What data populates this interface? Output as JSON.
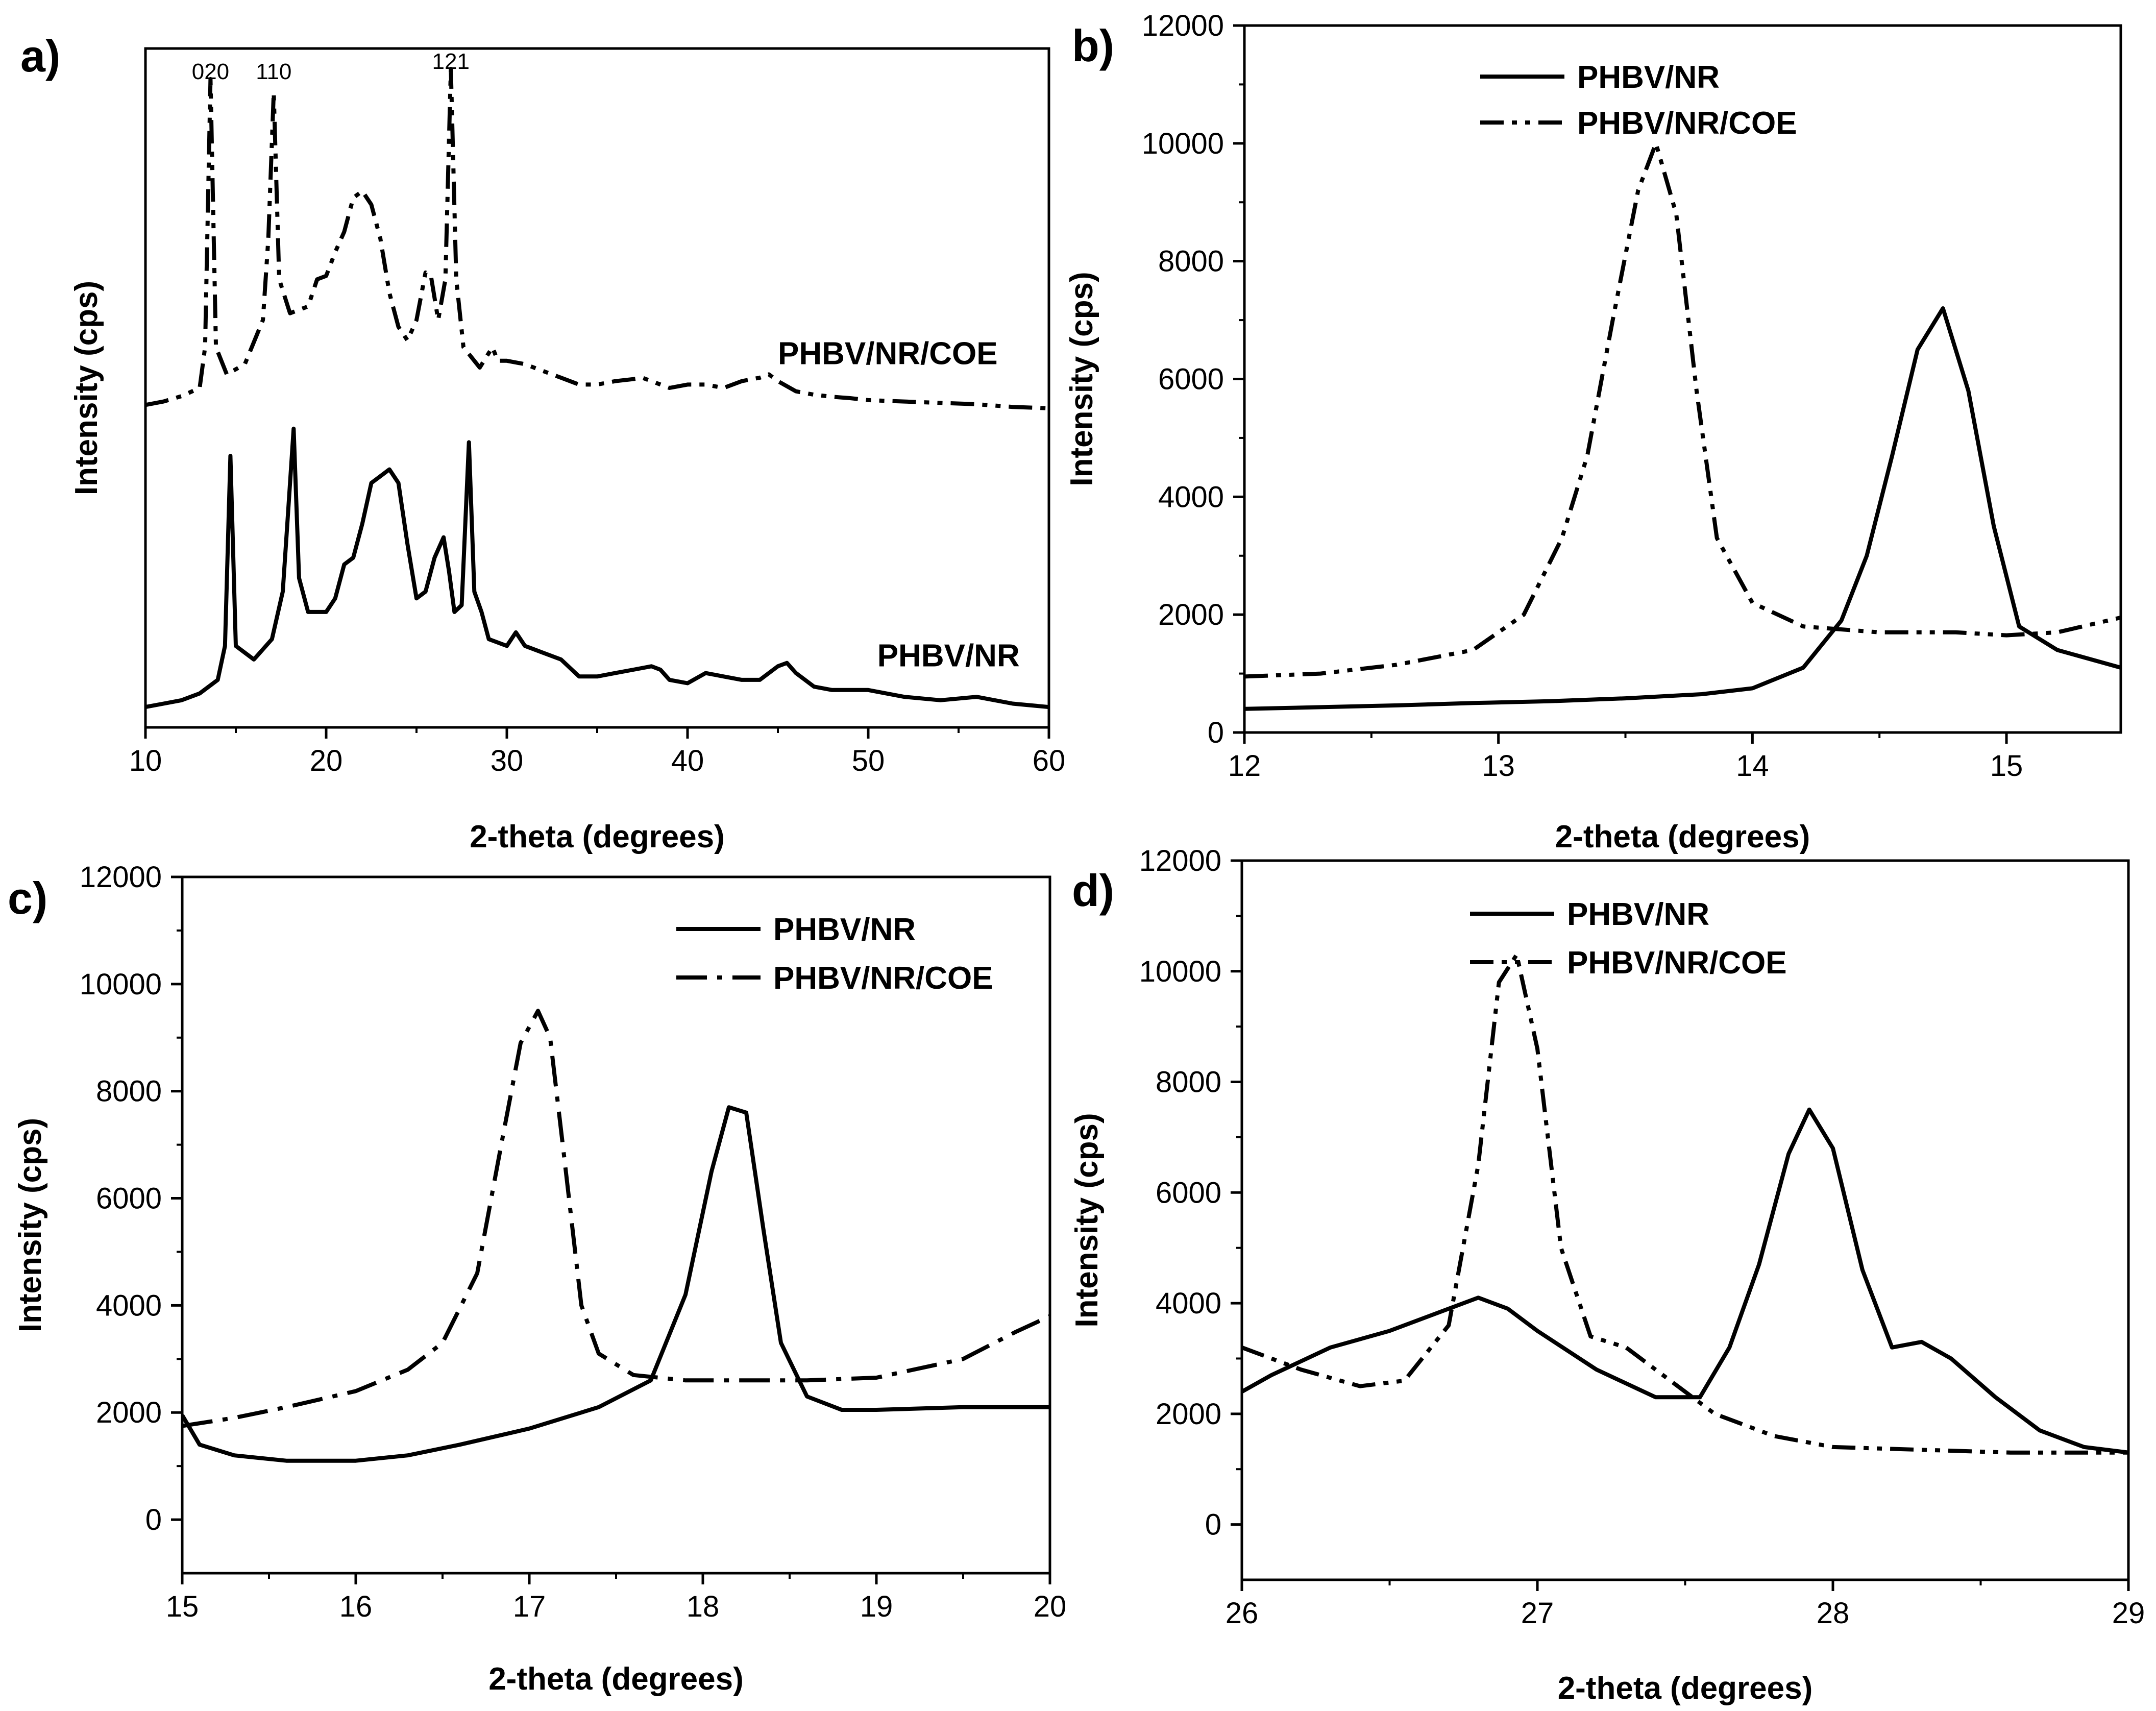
{
  "colors": {
    "line": "#000000",
    "background": "#ffffff"
  },
  "chart_data": [
    {
      "id": "a",
      "type": "line",
      "panel_label": "a)",
      "xlabel": "2-theta (degrees)",
      "ylabel": "Intensity (cps)",
      "xlim": [
        10,
        60
      ],
      "ylim": [
        0,
        1
      ],
      "xticks": [
        10,
        20,
        30,
        40,
        50,
        60
      ],
      "yticks": [],
      "legend": null,
      "peak_labels": [
        {
          "text": "020",
          "x": 13.6,
          "y": 0.955
        },
        {
          "text": "110",
          "x": 17.1,
          "y": 0.955
        },
        {
          "text": "121",
          "x": 26.9,
          "y": 0.97
        }
      ],
      "series": [
        {
          "name": "PHBV/NR/COE",
          "style": "dashdotdot",
          "end_label": {
            "text": "PHBV/NR/COE",
            "x": 45,
            "y": 0.535
          },
          "x": [
            10,
            11,
            12,
            13,
            13.3,
            13.6,
            13.9,
            14.5,
            15.5,
            16.5,
            16.8,
            17.1,
            17.4,
            18,
            19,
            19.5,
            20,
            20.5,
            21,
            21.5,
            22,
            22.5,
            23,
            23.5,
            24,
            24.5,
            25,
            25.5,
            25.8,
            26.2,
            26.6,
            26.9,
            27.2,
            27.6,
            28.5,
            29.2,
            29.5,
            30,
            31,
            32,
            33,
            34,
            35,
            36,
            37,
            37.5,
            38,
            39,
            40,
            41,
            42,
            43,
            44,
            44.5,
            45,
            46,
            47,
            48,
            49,
            50,
            52,
            54,
            56,
            58,
            60
          ],
          "y": [
            0.475,
            0.48,
            0.488,
            0.5,
            0.56,
            0.955,
            0.56,
            0.52,
            0.535,
            0.6,
            0.72,
            0.935,
            0.66,
            0.61,
            0.62,
            0.66,
            0.665,
            0.7,
            0.73,
            0.78,
            0.79,
            0.77,
            0.72,
            0.64,
            0.59,
            0.57,
            0.6,
            0.67,
            0.665,
            0.6,
            0.66,
            0.97,
            0.66,
            0.56,
            0.53,
            0.56,
            0.54,
            0.54,
            0.535,
            0.525,
            0.515,
            0.505,
            0.505,
            0.51,
            0.513,
            0.515,
            0.51,
            0.5,
            0.505,
            0.505,
            0.5,
            0.51,
            0.515,
            0.52,
            0.51,
            0.495,
            0.49,
            0.487,
            0.485,
            0.482,
            0.48,
            0.478,
            0.476,
            0.472,
            0.47
          ]
        },
        {
          "name": "PHBV/NR",
          "style": "solid",
          "end_label": {
            "text": "PHBV/NR",
            "x": 50.5,
            "y": 0.09
          },
          "x": [
            10,
            11,
            12,
            13,
            14,
            14.4,
            14.7,
            15,
            16,
            17,
            17.6,
            17.9,
            18.2,
            18.5,
            19,
            20,
            20.5,
            21,
            21.5,
            22,
            22.5,
            23,
            23.5,
            24,
            24.5,
            25,
            25.5,
            26,
            26.5,
            26.8,
            27.1,
            27.5,
            27.9,
            28.2,
            28.6,
            29,
            30,
            30.5,
            31,
            32,
            33,
            34,
            35,
            36,
            37,
            38,
            38.5,
            39,
            40,
            41,
            42,
            43,
            44,
            45,
            45.5,
            46,
            47,
            48,
            50,
            52,
            54,
            56,
            58,
            60
          ],
          "y": [
            0.03,
            0.035,
            0.04,
            0.05,
            0.07,
            0.12,
            0.4,
            0.12,
            0.1,
            0.13,
            0.2,
            0.32,
            0.44,
            0.22,
            0.17,
            0.17,
            0.19,
            0.24,
            0.25,
            0.3,
            0.36,
            0.37,
            0.38,
            0.36,
            0.27,
            0.19,
            0.2,
            0.25,
            0.28,
            0.23,
            0.17,
            0.18,
            0.42,
            0.2,
            0.17,
            0.13,
            0.12,
            0.14,
            0.12,
            0.11,
            0.1,
            0.075,
            0.075,
            0.08,
            0.085,
            0.09,
            0.085,
            0.07,
            0.065,
            0.08,
            0.075,
            0.07,
            0.07,
            0.09,
            0.095,
            0.08,
            0.06,
            0.055,
            0.055,
            0.045,
            0.04,
            0.045,
            0.035,
            0.03
          ]
        }
      ]
    },
    {
      "id": "b",
      "type": "line",
      "panel_label": "b)",
      "xlabel": "2-theta (degrees)",
      "ylabel": "Intensity (cps)",
      "xlim": [
        12,
        15.45
      ],
      "ylim": [
        0,
        12000
      ],
      "xticks": [
        12,
        13,
        14,
        15
      ],
      "yticks": [
        0,
        2000,
        4000,
        6000,
        8000,
        10000,
        12000
      ],
      "legend": [
        "PHBV/NR",
        "PHBV/NR/COE"
      ],
      "series": [
        {
          "name": "PHBV/NR",
          "style": "solid",
          "x": [
            12,
            12.3,
            12.6,
            12.9,
            13.2,
            13.5,
            13.8,
            14,
            14.2,
            14.35,
            14.45,
            14.55,
            14.65,
            14.75,
            14.85,
            14.95,
            15.05,
            15.2,
            15.45
          ],
          "y": [
            400,
            430,
            460,
            500,
            530,
            580,
            650,
            750,
            1100,
            1900,
            3000,
            4700,
            6500,
            7200,
            5800,
            3500,
            1800,
            1400,
            1100
          ]
        },
        {
          "name": "PHBV/NR/COE",
          "style": "dashdotdot",
          "x": [
            12,
            12.3,
            12.6,
            12.9,
            13.1,
            13.25,
            13.35,
            13.45,
            13.55,
            13.62,
            13.7,
            13.78,
            13.86,
            14,
            14.2,
            14.5,
            14.8,
            15,
            15.2,
            15.45
          ],
          "y": [
            950,
            1000,
            1150,
            1400,
            2000,
            3300,
            4700,
            7000,
            9200,
            10000,
            8800,
            5800,
            3300,
            2200,
            1800,
            1700,
            1700,
            1650,
            1700,
            1950
          ]
        }
      ]
    },
    {
      "id": "c",
      "type": "line",
      "panel_label": "c)",
      "xlabel": "2-theta (degrees)",
      "ylabel": "Intensity (cps)",
      "xlim": [
        15,
        20
      ],
      "ylim": [
        -1000,
        12000
      ],
      "xticks": [
        15,
        16,
        17,
        18,
        19,
        20
      ],
      "yticks": [
        0,
        2000,
        4000,
        6000,
        8000,
        10000,
        12000
      ],
      "legend": [
        "PHBV/NR",
        "PHBV/NR/COE"
      ],
      "series": [
        {
          "name": "PHBV/NR",
          "style": "solid",
          "x": [
            15,
            15.1,
            15.3,
            15.6,
            16,
            16.3,
            16.6,
            17,
            17.4,
            17.7,
            17.9,
            18.05,
            18.15,
            18.25,
            18.35,
            18.45,
            18.6,
            18.8,
            19,
            19.5,
            20
          ],
          "y": [
            1950,
            1400,
            1200,
            1100,
            1100,
            1200,
            1400,
            1700,
            2100,
            2600,
            4200,
            6500,
            7700,
            7600,
            5400,
            3300,
            2300,
            2050,
            2050,
            2100,
            2100
          ]
        },
        {
          "name": "PHBV/NR/COE",
          "style": "dashdot",
          "x": [
            15,
            15.3,
            15.6,
            16,
            16.3,
            16.5,
            16.7,
            16.85,
            16.95,
            17.05,
            17.12,
            17.2,
            17.3,
            17.4,
            17.6,
            17.9,
            18.2,
            18.6,
            19,
            19.5,
            19.8,
            20
          ],
          "y": [
            1750,
            1900,
            2100,
            2400,
            2800,
            3300,
            4600,
            7200,
            8900,
            9500,
            9000,
            6800,
            4000,
            3100,
            2700,
            2600,
            2600,
            2600,
            2650,
            3000,
            3500,
            3800
          ]
        }
      ]
    },
    {
      "id": "d",
      "type": "line",
      "panel_label": "d)",
      "xlabel": "2-theta (degrees)",
      "ylabel": "Intensity (cps)",
      "xlim": [
        26,
        29
      ],
      "ylim": [
        -1000,
        12000
      ],
      "xticks": [
        26,
        27,
        28,
        29
      ],
      "yticks": [
        0,
        2000,
        4000,
        6000,
        8000,
        10000,
        12000
      ],
      "legend": [
        "PHBV/NR",
        "PHBV/NR/COE"
      ],
      "series": [
        {
          "name": "PHBV/NR",
          "style": "solid",
          "x": [
            26,
            26.1,
            26.3,
            26.5,
            26.7,
            26.8,
            26.9,
            27,
            27.2,
            27.4,
            27.55,
            27.65,
            27.75,
            27.85,
            27.92,
            28,
            28.1,
            28.2,
            28.3,
            28.4,
            28.55,
            28.7,
            28.85,
            29
          ],
          "y": [
            2400,
            2700,
            3200,
            3500,
            3900,
            4100,
            3900,
            3500,
            2800,
            2300,
            2300,
            3200,
            4700,
            6700,
            7500,
            6800,
            4600,
            3200,
            3300,
            3000,
            2300,
            1700,
            1400,
            1300
          ]
        },
        {
          "name": "PHBV/NR/COE",
          "style": "dashdotdot",
          "x": [
            26,
            26.2,
            26.4,
            26.55,
            26.7,
            26.8,
            26.87,
            26.93,
            27,
            27.08,
            27.18,
            27.3,
            27.45,
            27.6,
            27.8,
            28,
            28.3,
            28.6,
            29
          ],
          "y": [
            3200,
            2800,
            2500,
            2600,
            3600,
            6500,
            9800,
            10300,
            8600,
            5000,
            3400,
            3200,
            2600,
            2000,
            1600,
            1400,
            1350,
            1300,
            1300
          ]
        }
      ]
    }
  ]
}
